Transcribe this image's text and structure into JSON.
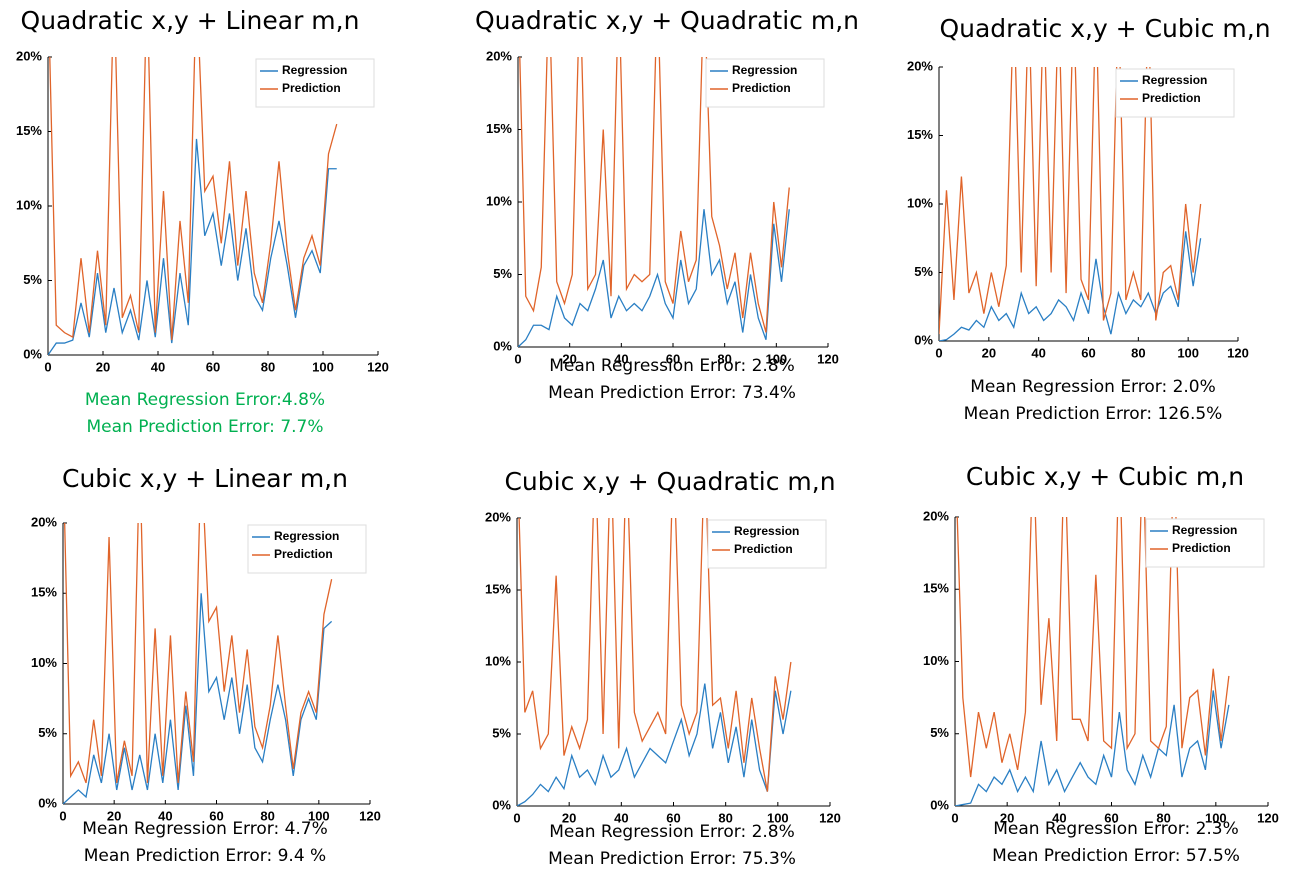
{
  "chart_data": [
    {
      "type": "line",
      "title": "Quadratic x,y + Linear m,n",
      "x": [
        0,
        3,
        6,
        9,
        12,
        15,
        18,
        21,
        24,
        27,
        30,
        33,
        36,
        39,
        42,
        45,
        48,
        51,
        54,
        57,
        60,
        63,
        66,
        69,
        72,
        75,
        78,
        81,
        84,
        87,
        90,
        93,
        96,
        99,
        102,
        105
      ],
      "series": [
        {
          "name": "Regression",
          "color": "#2a7fc4",
          "values": [
            0,
            0.8,
            0.8,
            1.0,
            3.5,
            1.2,
            5.5,
            1.5,
            4.5,
            1.5,
            3.0,
            1.0,
            5.0,
            1.2,
            6.5,
            0.8,
            5.5,
            2.0,
            14.5,
            8.0,
            9.5,
            6.0,
            9.5,
            5.0,
            8.5,
            4.0,
            3.0,
            6.5,
            9.0,
            6.0,
            2.5,
            6.0,
            7.0,
            5.5,
            12.5,
            12.5
          ]
        },
        {
          "name": "Prediction",
          "color": "#e0642a",
          "values": [
            25,
            2.0,
            1.5,
            1.2,
            6.5,
            1.5,
            7.0,
            2.0,
            25,
            2.5,
            4.0,
            1.5,
            25,
            1.5,
            11,
            1.0,
            9.0,
            3.5,
            25,
            11,
            12,
            7.5,
            13,
            6.0,
            11,
            5.5,
            3.5,
            7.5,
            13,
            7.0,
            3.0,
            6.5,
            8.0,
            6.0,
            13.5,
            15.5
          ]
        }
      ],
      "xlim": [
        0,
        120
      ],
      "xticks": [
        0,
        20,
        40,
        60,
        80,
        100,
        120
      ],
      "ylim": [
        0,
        20
      ],
      "yticks": [
        {
          "value": 0,
          "label": "0%"
        },
        {
          "value": 5,
          "label": "5%"
        },
        {
          "value": 10,
          "label": "10%"
        },
        {
          "value": 15,
          "label": "15%"
        },
        {
          "value": 20,
          "label": "20%"
        }
      ],
      "legend": "upper right",
      "annotations": [
        "Mean Regression Error:4.8%",
        "Mean Prediction Error: 7.7%"
      ],
      "annotation_color": "#00b050"
    },
    {
      "type": "line",
      "title": "Quadratic x,y + Quadratic m,n",
      "x": [
        0,
        3,
        6,
        9,
        12,
        15,
        18,
        21,
        24,
        27,
        30,
        33,
        36,
        39,
        42,
        45,
        48,
        51,
        54,
        57,
        60,
        63,
        66,
        69,
        72,
        75,
        78,
        81,
        84,
        87,
        90,
        93,
        96,
        99,
        102,
        105
      ],
      "series": [
        {
          "name": "Regression",
          "color": "#2a7fc4",
          "values": [
            0,
            0.5,
            1.5,
            1.5,
            1.2,
            3.5,
            2.0,
            1.5,
            3.0,
            2.5,
            4.0,
            6.0,
            2.0,
            3.5,
            2.5,
            3.0,
            2.5,
            3.5,
            5.0,
            3.0,
            2.0,
            6.0,
            3.0,
            4.0,
            9.5,
            5.0,
            6.0,
            3.0,
            4.5,
            1.0,
            5.0,
            2.0,
            0.5,
            8.5,
            4.5,
            9.5
          ]
        },
        {
          "name": "Prediction",
          "color": "#e0642a",
          "values": [
            25,
            3.5,
            2.5,
            5.5,
            25,
            4.5,
            3.0,
            5.0,
            25,
            4.0,
            5.0,
            15,
            3.5,
            25,
            4.0,
            5.0,
            4.5,
            5.0,
            25,
            4.5,
            3.0,
            8.0,
            4.5,
            6.0,
            25,
            9.0,
            7.0,
            4.0,
            6.5,
            2.0,
            6.5,
            3.0,
            1.0,
            10,
            5.5,
            11
          ]
        }
      ],
      "xlim": [
        0,
        120
      ],
      "xticks": [
        0,
        20,
        40,
        60,
        80,
        100,
        120
      ],
      "ylim": [
        0,
        20
      ],
      "yticks": [
        {
          "value": 0,
          "label": "0%"
        },
        {
          "value": 5,
          "label": "5%"
        },
        {
          "value": 10,
          "label": "10%"
        },
        {
          "value": 15,
          "label": "15%"
        },
        {
          "value": 20,
          "label": "20%"
        }
      ],
      "legend": "upper right",
      "annotations": [
        "Mean Regression Error: 2.8%",
        "Mean Prediction Error: 73.4%"
      ],
      "annotation_color": "#000000"
    },
    {
      "type": "line",
      "title": "Quadratic x,y + Cubic m,n",
      "x": [
        0,
        3,
        6,
        9,
        12,
        15,
        18,
        21,
        24,
        27,
        30,
        33,
        36,
        39,
        42,
        45,
        48,
        51,
        54,
        57,
        60,
        63,
        66,
        69,
        72,
        75,
        78,
        81,
        84,
        87,
        90,
        93,
        96,
        99,
        102,
        105
      ],
      "series": [
        {
          "name": "Regression",
          "color": "#2a7fc4",
          "values": [
            0,
            0.1,
            0.5,
            1.0,
            0.8,
            1.5,
            1.0,
            2.5,
            1.5,
            2.0,
            1.0,
            3.5,
            2.0,
            2.5,
            1.5,
            2.0,
            3.0,
            2.5,
            1.5,
            3.5,
            2.0,
            6.0,
            2.5,
            0.5,
            3.5,
            2.0,
            3.0,
            2.5,
            3.5,
            2.0,
            3.5,
            4.0,
            2.5,
            8.0,
            4.0,
            7.5
          ]
        },
        {
          "name": "Prediction",
          "color": "#e0642a",
          "values": [
            0.5,
            11,
            3.0,
            12,
            3.5,
            5.0,
            2.0,
            5.0,
            2.5,
            5.5,
            25,
            5.0,
            25,
            4.0,
            25,
            5.0,
            25,
            3.5,
            25,
            4.5,
            3.0,
            25,
            1.5,
            3.5,
            25,
            3.0,
            5.0,
            3.0,
            25,
            1.5,
            5.0,
            5.5,
            3.0,
            10,
            5.0,
            10
          ]
        }
      ],
      "xlim": [
        0,
        120
      ],
      "xticks": [
        0,
        20,
        40,
        60,
        80,
        100,
        120
      ],
      "ylim": [
        0,
        20
      ],
      "yticks": [
        {
          "value": 0,
          "label": "0%"
        },
        {
          "value": 5,
          "label": "5%"
        },
        {
          "value": 10,
          "label": "10%"
        },
        {
          "value": 15,
          "label": "15%"
        },
        {
          "value": 20,
          "label": "20%"
        }
      ],
      "legend": "upper right",
      "annotations": [
        "Mean Regression Error: 2.0%",
        "Mean Prediction Error: 126.5%"
      ],
      "annotation_color": "#000000"
    },
    {
      "type": "line",
      "title": "Cubic x,y + Linear m,n",
      "x": [
        0,
        3,
        6,
        9,
        12,
        15,
        18,
        21,
        24,
        27,
        30,
        33,
        36,
        39,
        42,
        45,
        48,
        51,
        54,
        57,
        60,
        63,
        66,
        69,
        72,
        75,
        78,
        81,
        84,
        87,
        90,
        93,
        96,
        99,
        102,
        105
      ],
      "series": [
        {
          "name": "Regression",
          "color": "#2a7fc4",
          "values": [
            0,
            0.5,
            1.0,
            0.5,
            3.5,
            1.5,
            5.0,
            1.0,
            4.0,
            1.0,
            3.5,
            1.0,
            5.0,
            1.5,
            6.0,
            1.0,
            7.0,
            2.0,
            15,
            8.0,
            9.0,
            6.0,
            9.0,
            5.0,
            8.5,
            4.0,
            3.0,
            6.0,
            8.5,
            6.0,
            2.0,
            6.0,
            7.5,
            6.0,
            12.5,
            13
          ]
        },
        {
          "name": "Prediction",
          "color": "#e0642a",
          "values": [
            25,
            2.0,
            3.0,
            1.5,
            6.0,
            2.0,
            19,
            1.5,
            4.5,
            2.0,
            25,
            1.5,
            12.5,
            2.0,
            12,
            1.5,
            8.0,
            3.0,
            25,
            13,
            14,
            8.0,
            12,
            6.5,
            11,
            5.5,
            4.0,
            7.0,
            12,
            7.0,
            2.5,
            6.5,
            8.0,
            6.5,
            13.5,
            16
          ]
        }
      ],
      "xlim": [
        0,
        120
      ],
      "xticks": [
        0,
        20,
        40,
        60,
        80,
        100,
        120
      ],
      "ylim": [
        0,
        20
      ],
      "yticks": [
        {
          "value": 0,
          "label": "0%"
        },
        {
          "value": 5,
          "label": "5%"
        },
        {
          "value": 10,
          "label": "10%"
        },
        {
          "value": 15,
          "label": "15%"
        },
        {
          "value": 20,
          "label": "20%"
        }
      ],
      "legend": "upper right",
      "annotations": [
        "Mean Regression Error: 4.7%",
        "Mean Prediction Error: 9.4 %"
      ],
      "annotation_color": "#000000"
    },
    {
      "type": "line",
      "title": "Cubic x,y + Quadratic m,n",
      "x": [
        0,
        3,
        6,
        9,
        12,
        15,
        18,
        21,
        24,
        27,
        30,
        33,
        36,
        39,
        42,
        45,
        48,
        51,
        54,
        57,
        60,
        63,
        66,
        69,
        72,
        75,
        78,
        81,
        84,
        87,
        90,
        93,
        96,
        99,
        102,
        105
      ],
      "series": [
        {
          "name": "Regression",
          "color": "#2a7fc4",
          "values": [
            0,
            0.3,
            0.8,
            1.5,
            1.0,
            2.0,
            1.2,
            3.5,
            2.0,
            2.5,
            1.5,
            3.5,
            2.0,
            2.5,
            4.0,
            2.0,
            3.0,
            4.0,
            3.5,
            3.0,
            4.5,
            6.0,
            3.5,
            5.0,
            8.5,
            4.0,
            6.5,
            3.0,
            5.5,
            2.0,
            6.0,
            2.5,
            1.0,
            8.0,
            5.0,
            8.0
          ]
        },
        {
          "name": "Prediction",
          "color": "#e0642a",
          "values": [
            25,
            6.5,
            8.0,
            4.0,
            5.0,
            16,
            3.5,
            5.5,
            4.0,
            6.0,
            25,
            5.0,
            25,
            4.0,
            25,
            6.5,
            4.5,
            5.5,
            6.5,
            5.0,
            25,
            7.0,
            5.0,
            6.5,
            25,
            7.0,
            7.5,
            4.0,
            8.0,
            3.0,
            7.5,
            4.0,
            1.0,
            9.0,
            6.0,
            10
          ]
        }
      ],
      "xlim": [
        0,
        120
      ],
      "xticks": [
        0,
        20,
        40,
        60,
        80,
        100,
        120
      ],
      "ylim": [
        0,
        20
      ],
      "yticks": [
        {
          "value": 0,
          "label": "0%"
        },
        {
          "value": 5,
          "label": "5%"
        },
        {
          "value": 10,
          "label": "10%"
        },
        {
          "value": 15,
          "label": "15%"
        },
        {
          "value": 20,
          "label": "20%"
        }
      ],
      "legend": "upper right",
      "annotations": [
        "Mean Regression Error: 2.8%",
        "Mean Prediction Error: 75.3%"
      ],
      "annotation_color": "#000000"
    },
    {
      "type": "line",
      "title": "Cubic x,y + Cubic m,n",
      "x": [
        0,
        3,
        6,
        9,
        12,
        15,
        18,
        21,
        24,
        27,
        30,
        33,
        36,
        39,
        42,
        45,
        48,
        51,
        54,
        57,
        60,
        63,
        66,
        69,
        72,
        75,
        78,
        81,
        84,
        87,
        90,
        93,
        96,
        99,
        102,
        105
      ],
      "series": [
        {
          "name": "Regression",
          "color": "#2a7fc4",
          "values": [
            0,
            0.1,
            0.2,
            1.5,
            1.0,
            2.0,
            1.5,
            2.5,
            1.0,
            2.0,
            1.0,
            4.5,
            1.5,
            2.5,
            1.0,
            2.0,
            3.0,
            2.0,
            1.5,
            3.5,
            2.0,
            6.5,
            2.5,
            1.5,
            3.5,
            2.0,
            4.0,
            3.5,
            7.0,
            2.0,
            4.0,
            4.5,
            2.5,
            8.0,
            4.0,
            7.0
          ]
        },
        {
          "name": "Prediction",
          "color": "#e0642a",
          "values": [
            25,
            7.5,
            2.0,
            6.5,
            4.0,
            6.5,
            3.0,
            5.0,
            2.5,
            6.5,
            25,
            7.0,
            13,
            4.5,
            25,
            6.0,
            6.0,
            4.5,
            16,
            4.5,
            4.0,
            25,
            4.0,
            5.0,
            25,
            4.5,
            4.0,
            5.5,
            25,
            4.0,
            7.5,
            8.0,
            3.5,
            9.5,
            4.5,
            9.0
          ]
        }
      ],
      "xlim": [
        0,
        120
      ],
      "xticks": [
        0,
        20,
        40,
        60,
        80,
        100,
        120
      ],
      "ylim": [
        0,
        20
      ],
      "yticks": [
        {
          "value": 0,
          "label": "0%"
        },
        {
          "value": 5,
          "label": "5%"
        },
        {
          "value": 10,
          "label": "10%"
        },
        {
          "value": 15,
          "label": "15%"
        },
        {
          "value": 20,
          "label": "20%"
        }
      ],
      "legend": "upper right",
      "annotations": [
        "Mean Regression Error: 2.3%",
        "Mean Prediction Error: 57.5%"
      ],
      "annotation_color": "#000000"
    }
  ]
}
